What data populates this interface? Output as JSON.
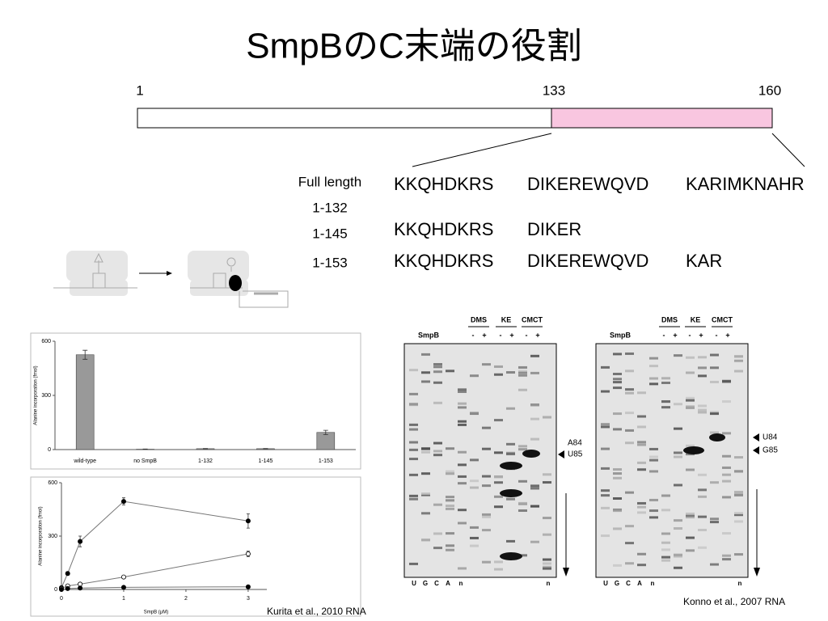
{
  "title": "SmpBのC末端の役割",
  "domain_map": {
    "positions": [
      1,
      133,
      160
    ]
  },
  "constructs": [
    {
      "label": "Full length",
      "segments": [
        "KKQHDKRS",
        "DIKEREWQVD",
        "KARIMKNAHR"
      ]
    },
    {
      "label": "1-132",
      "segments": []
    },
    {
      "label": "1-145",
      "segments": [
        "KKQHDKRS",
        "DIKER"
      ]
    },
    {
      "label": "1-153",
      "segments": [
        "KKQHDKRS",
        "DIKEREWQVD",
        "KAR"
      ]
    }
  ],
  "bar_chart": {
    "type": "bar",
    "ylabel": "Alanine incorporation (fmol)",
    "categories": [
      "wild-type",
      "no SmpB",
      "1-132",
      "1-145",
      "1-153"
    ],
    "values": [
      525,
      2,
      5,
      5,
      95
    ],
    "errors": [
      25,
      1,
      1,
      1,
      12
    ],
    "color": "#999999",
    "ylim": [
      0,
      600
    ],
    "yticks": [
      0,
      300,
      600
    ]
  },
  "line_chart": {
    "type": "line",
    "xlabel": "SmpB (μM)",
    "ylabel": "Alanine incorporation (fmol)",
    "x": [
      0,
      0.1,
      0.3,
      1,
      3
    ],
    "series": [
      {
        "color": "#000000",
        "marker": "filled",
        "values": [
          10,
          90,
          270,
          495,
          385
        ],
        "errors": [
          5,
          10,
          30,
          20,
          40
        ]
      },
      {
        "color": "#000000",
        "marker": "open",
        "values": [
          5,
          20,
          30,
          70,
          200
        ],
        "errors": [
          2,
          3,
          4,
          6,
          15
        ]
      },
      {
        "color": "#000000",
        "marker": "filled",
        "values": [
          0,
          5,
          8,
          12,
          15
        ],
        "errors": [
          1,
          1,
          1,
          2,
          3
        ]
      }
    ],
    "xlim": [
      0,
      3.3
    ],
    "xticks": [
      0,
      1,
      2,
      3
    ],
    "ylim": [
      0,
      600
    ],
    "yticks": [
      0,
      300,
      600
    ]
  },
  "gels": [
    {
      "smpb_label": "SmpB",
      "reagents": [
        "DMS",
        "KE",
        "CMCT"
      ],
      "signs": [
        "-",
        "+",
        "-",
        "+",
        "-",
        "+"
      ],
      "markers": [
        "A84",
        "U85"
      ],
      "lane_labels": [
        "U",
        "G",
        "C",
        "A",
        "n",
        "n"
      ]
    },
    {
      "smpb_label": "SmpB",
      "reagents": [
        "DMS",
        "KE",
        "CMCT"
      ],
      "signs": [
        "-",
        "+",
        "-",
        "+",
        "-",
        "+"
      ],
      "markers": [
        "U84",
        "G85"
      ],
      "lane_labels": [
        "U",
        "G",
        "C",
        "A",
        "n",
        "n"
      ]
    }
  ],
  "citations": [
    "Kurita et al., 2010 RNA",
    "Konno et al., 2007 RNA"
  ]
}
